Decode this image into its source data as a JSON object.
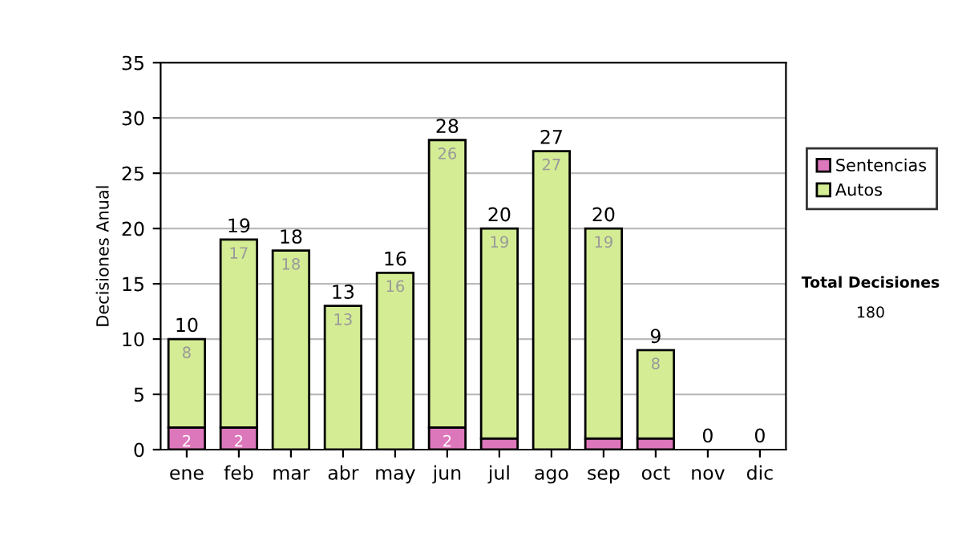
{
  "chart_data": {
    "type": "bar",
    "stacked": true,
    "ylabel": "Decisiones Anual",
    "categories": [
      "ene",
      "feb",
      "mar",
      "abr",
      "may",
      "jun",
      "jul",
      "ago",
      "sep",
      "oct",
      "nov",
      "dic"
    ],
    "series": [
      {
        "name": "Sentencias",
        "color": "#dd77bb",
        "values": [
          2,
          2,
          0,
          0,
          0,
          2,
          1,
          0,
          1,
          1,
          0,
          0
        ],
        "value_labels": [
          "2",
          "2",
          null,
          null,
          null,
          "2",
          null,
          null,
          null,
          null,
          null,
          null
        ]
      },
      {
        "name": "Autos",
        "color": "#d4ec94",
        "values": [
          8,
          17,
          18,
          13,
          16,
          26,
          19,
          27,
          19,
          8,
          0,
          0
        ],
        "value_labels": [
          "8",
          "17",
          "18",
          "13",
          "16",
          "26",
          "19",
          "27",
          "19",
          "8",
          null,
          null
        ]
      }
    ],
    "totals": [
      "10",
      "19",
      "18",
      "13",
      "16",
      "28",
      "20",
      "27",
      "20",
      "9",
      "0",
      "0"
    ],
    "ylim": [
      0,
      35
    ],
    "yticks": [
      0,
      5,
      10,
      15,
      20,
      25,
      30,
      35
    ],
    "grid": "y",
    "legend": "right",
    "annotations": [
      "Total Decisiones",
      "180"
    ]
  }
}
